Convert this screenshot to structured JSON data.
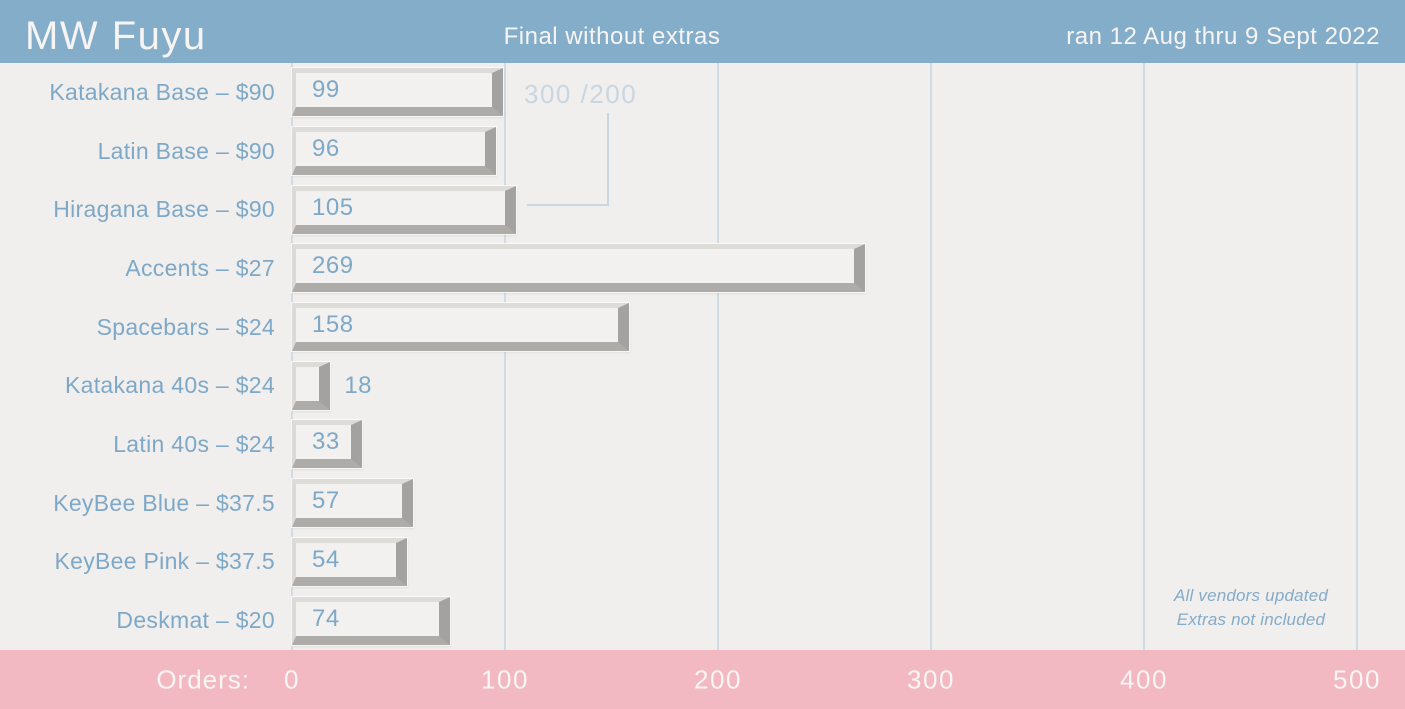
{
  "header": {
    "title": "MW Fuyu",
    "subtitle": "Final without extras",
    "date_range": "ran 12 Aug thru 9 Sept 2022"
  },
  "chart_data": {
    "type": "bar",
    "orientation": "horizontal",
    "title": "MW Fuyu",
    "subtitle": "Final without extras",
    "categories": [
      "Katakana Base – $90",
      "Latin Base – $90",
      "Hiragana Base – $90",
      "Accents – $27",
      "Spacebars – $24",
      "Katakana 40s – $24",
      "Latin 40s – $24",
      "KeyBee Blue – $37.5",
      "KeyBee Pink – $37.5",
      "Deskmat – $20"
    ],
    "values": [
      99,
      96,
      105,
      269,
      158,
      18,
      33,
      57,
      54,
      74
    ],
    "xlabel": "Orders:",
    "x_ticks": [
      "0",
      "100",
      "200",
      "300",
      "400",
      "500"
    ],
    "xlim": [
      0,
      520
    ],
    "grid": "vertical",
    "legend_position": "none",
    "annotation": {
      "text": "300 /200",
      "target_category": "Hiragana Base – $90"
    },
    "notes": [
      "All vendors updated",
      "Extras not included"
    ]
  },
  "colors": {
    "header_bg": "#84adc9",
    "axis_bg": "#f3b9c2",
    "chart_bg": "#f0efed",
    "label_blue": "#7ea8c7",
    "annotation_blue": "#c9d6e2",
    "gridline": "#cfdce6",
    "key_face": "#f2f1ef",
    "key_bevel_dark": "#a4a2a0",
    "text_light": "#f7f5f4"
  }
}
